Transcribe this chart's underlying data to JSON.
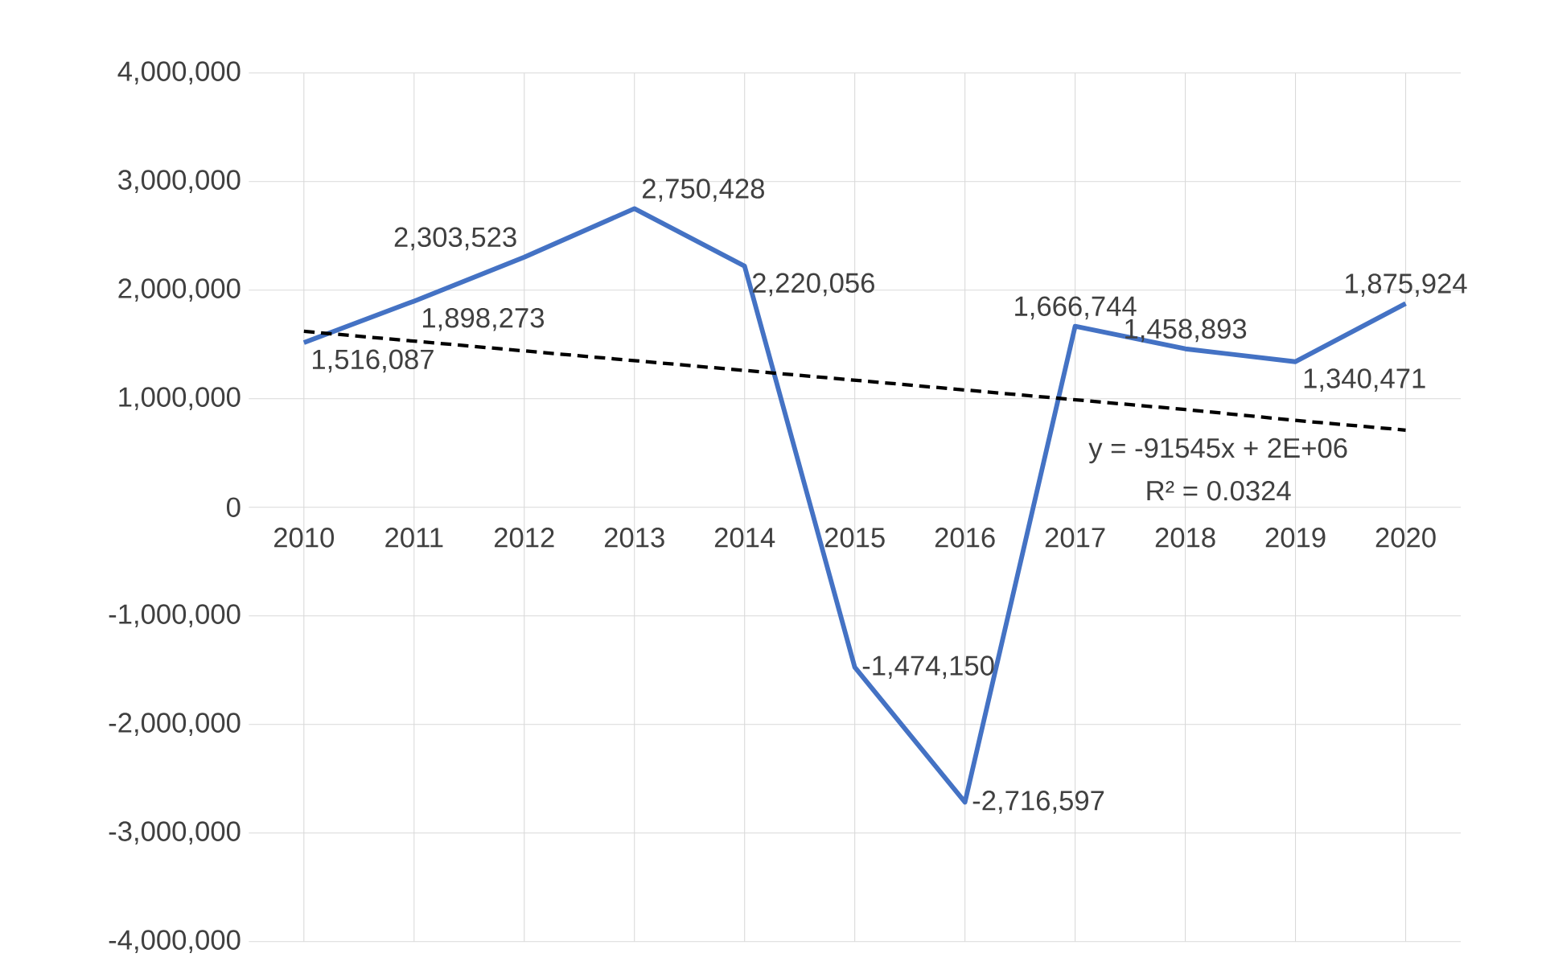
{
  "chart_data": {
    "type": "line",
    "categories": [
      "2010",
      "2011",
      "2012",
      "2013",
      "2014",
      "2015",
      "2016",
      "2017",
      "2018",
      "2019",
      "2020"
    ],
    "series": [
      {
        "color": "#4472c4",
        "line_style": "solid",
        "values": [
          1516087,
          1898273,
          2303523,
          2750428,
          2220056,
          -1474150,
          -2716597,
          1666744,
          1458893,
          1340471,
          1875924
        ],
        "value_labels": [
          "1,516,087",
          "1,898,273",
          "2,303,523",
          "2,750,428",
          "2,220,056",
          "-1,474,150",
          "-2,716,597",
          "1,666,744",
          "1,458,893",
          "1,340,471",
          "1,875,924"
        ]
      },
      {
        "type": "line",
        "color": "#000000",
        "line_style": "dashed",
        "values": [
          1620000,
          1530000,
          1440000,
          1350000,
          1260000,
          1170000,
          1080000,
          990000,
          900000,
          800000,
          710000
        ]
      }
    ],
    "ylim": [
      -4000000,
      4000000
    ],
    "yticks": [
      {
        "value": -4000000,
        "label": "-4,000,000"
      },
      {
        "value": -3000000,
        "label": "-3,000,000"
      },
      {
        "value": -2000000,
        "label": "-2,000,000"
      },
      {
        "value": -1000000,
        "label": "-1,000,000"
      },
      {
        "value": 0,
        "label": "0"
      },
      {
        "value": 1000000,
        "label": "1,000,000"
      },
      {
        "value": 2000000,
        "label": "2,000,000"
      },
      {
        "value": 3000000,
        "label": "3,000,000"
      },
      {
        "value": 4000000,
        "label": "4,000,000"
      }
    ],
    "annotations": [
      "y = -91545x + 2E+06",
      "R² = 0.0324"
    ],
    "grid": true,
    "legend": false
  }
}
